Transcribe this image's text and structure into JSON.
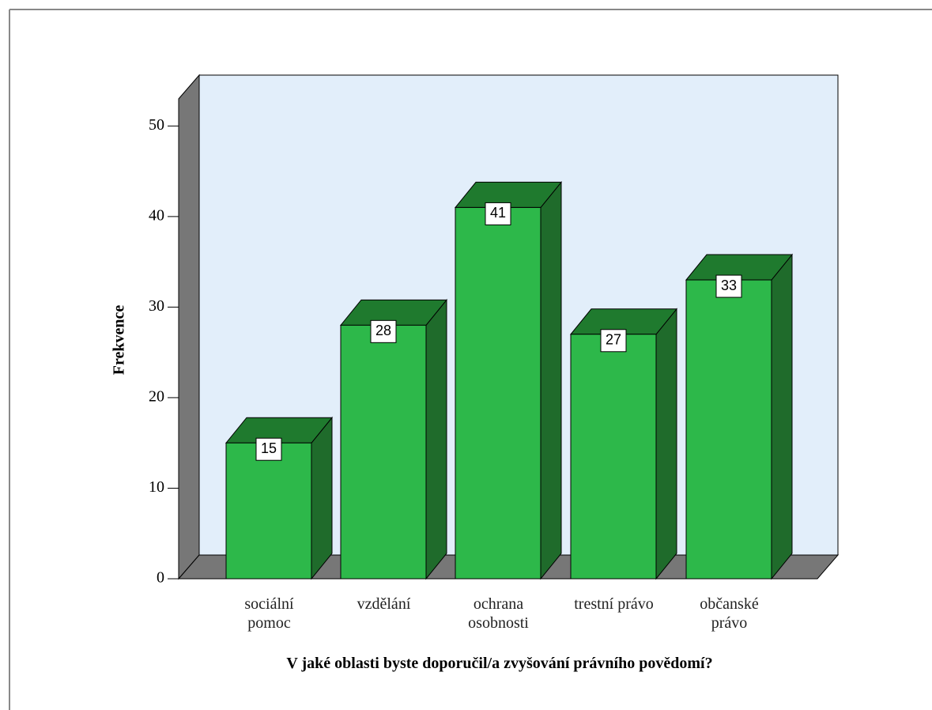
{
  "chart_data": {
    "type": "bar3d",
    "title": "V jaké oblasti byste doporučil/a zvyšování právního povědomí?",
    "y_label": "Frekvence",
    "categories": [
      "sociální pomoc",
      "vzdělání",
      "ochrana osobnosti",
      "trestní právo",
      "občanské právo"
    ],
    "values": [
      15,
      28,
      41,
      27,
      33
    ],
    "color": "#2db84a",
    "ylim": [
      0,
      53
    ],
    "yticks": [
      0,
      10,
      20,
      30,
      40,
      50
    ]
  }
}
